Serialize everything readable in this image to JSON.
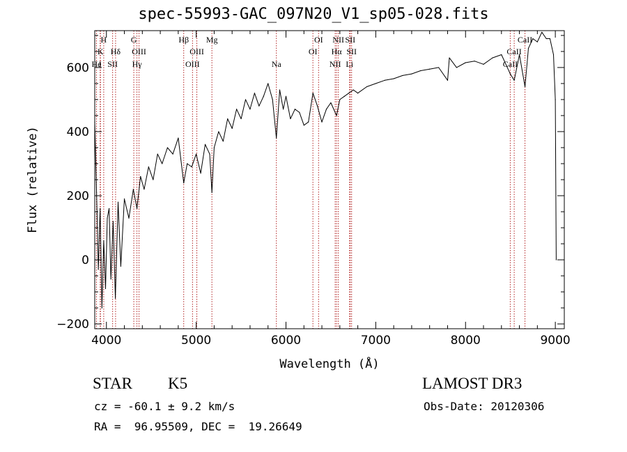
{
  "header": {
    "title": "spec-55993-GAC_097N20_V1_sp05-028.fits"
  },
  "footer": {
    "object_class": "STAR",
    "subclass": "K5",
    "survey": "LAMOST DR3",
    "cz": "cz = -60.1 ± 9.2 km/s",
    "obs_date": "Obs-Date: 20120306",
    "radec": "RA =  96.95509, DEC =  19.26649"
  },
  "colors": {
    "spectrum": "#000000",
    "line_markers": "#b22222",
    "axes": "#000000"
  },
  "chart_data": {
    "type": "line",
    "xlabel": "Wavelength (Å)",
    "ylabel": "Flux (relative)",
    "xlim": [
      3870,
      9100
    ],
    "ylim": [
      -215,
      715
    ],
    "x_ticks": [
      4000,
      5000,
      6000,
      7000,
      8000,
      9000
    ],
    "y_ticks": [
      -200,
      0,
      200,
      400,
      600
    ],
    "grid": false,
    "legend": "none",
    "series": [
      {
        "x": [
          3870,
          3890,
          3910,
          3930,
          3950,
          3970,
          3990,
          4010,
          4030,
          4050,
          4075,
          4100,
          4130,
          4160,
          4200,
          4250,
          4300,
          4340,
          4380,
          4420,
          4470,
          4520,
          4570,
          4620,
          4680,
          4740,
          4800,
          4861,
          4900,
          4950,
          5000,
          5050,
          5100,
          5150,
          5175,
          5200,
          5250,
          5300,
          5350,
          5400,
          5450,
          5500,
          5550,
          5600,
          5650,
          5700,
          5750,
          5800,
          5850,
          5893,
          5930,
          5970,
          6000,
          6050,
          6100,
          6150,
          6200,
          6250,
          6300,
          6350,
          6400,
          6450,
          6500,
          6563,
          6600,
          6650,
          6700,
          6750,
          6800,
          6900,
          7000,
          7100,
          7200,
          7300,
          7400,
          7500,
          7600,
          7700,
          7800,
          7820,
          7900,
          8000,
          8100,
          8200,
          8300,
          8400,
          8498,
          8542,
          8600,
          8662,
          8700,
          8750,
          8800,
          8850,
          8900,
          8940,
          8980,
          9000,
          9010
        ],
        "y": [
          430,
          210,
          -30,
          160,
          -150,
          60,
          -90,
          130,
          160,
          -60,
          120,
          -120,
          180,
          -20,
          190,
          130,
          220,
          160,
          260,
          220,
          290,
          250,
          330,
          300,
          350,
          330,
          380,
          240,
          300,
          290,
          330,
          270,
          360,
          330,
          210,
          350,
          400,
          370,
          440,
          410,
          470,
          440,
          500,
          470,
          520,
          480,
          510,
          550,
          500,
          380,
          530,
          470,
          510,
          440,
          470,
          460,
          420,
          430,
          520,
          480,
          430,
          470,
          490,
          450,
          500,
          510,
          520,
          530,
          520,
          540,
          550,
          560,
          565,
          575,
          580,
          590,
          595,
          600,
          560,
          630,
          600,
          615,
          620,
          610,
          630,
          640,
          580,
          560,
          640,
          540,
          660,
          690,
          680,
          710,
          690,
          690,
          640,
          500,
          0
        ]
      }
    ],
    "line_markers": [
      {
        "label": "H",
        "wavelength": 3970,
        "row": 0
      },
      {
        "label": "K",
        "wavelength": 3934,
        "row": 1
      },
      {
        "label": "He",
        "wavelength": 3889,
        "row": 2
      },
      {
        "label": "I",
        "wavelength": 3930,
        "row": 2
      },
      {
        "label": "SII",
        "wavelength": 4069,
        "row": 2
      },
      {
        "label": "Hδ",
        "wavelength": 4102,
        "row": 1
      },
      {
        "label": "G",
        "wavelength": 4305,
        "row": 0
      },
      {
        "label": "OIII",
        "wavelength": 4363,
        "row": 1
      },
      {
        "label": "Hγ",
        "wavelength": 4340,
        "row": 2
      },
      {
        "label": "Hβ",
        "wavelength": 4861,
        "row": 0
      },
      {
        "label": "OIII",
        "wavelength": 5007,
        "row": 1
      },
      {
        "label": "OIII",
        "wavelength": 4959,
        "row": 2
      },
      {
        "label": "Mg",
        "wavelength": 5175,
        "row": 0
      },
      {
        "label": "Na",
        "wavelength": 5893,
        "row": 2
      },
      {
        "label": "OI",
        "wavelength": 6363,
        "row": 0
      },
      {
        "label": "OI",
        "wavelength": 6300,
        "row": 1
      },
      {
        "label": "NII",
        "wavelength": 6583,
        "row": 0
      },
      {
        "label": "SII",
        "wavelength": 6716,
        "row": 0
      },
      {
        "label": "Hα",
        "wavelength": 6563,
        "row": 1
      },
      {
        "label": "SII",
        "wavelength": 6731,
        "row": 1
      },
      {
        "label": "NII",
        "wavelength": 6548,
        "row": 2
      },
      {
        "label": "Li",
        "wavelength": 6708,
        "row": 2
      },
      {
        "label": "CaII",
        "wavelength": 8662,
        "row": 0
      },
      {
        "label": "CaII",
        "wavelength": 8542,
        "row": 1
      },
      {
        "label": "CaII",
        "wavelength": 8498,
        "row": 2
      }
    ]
  }
}
